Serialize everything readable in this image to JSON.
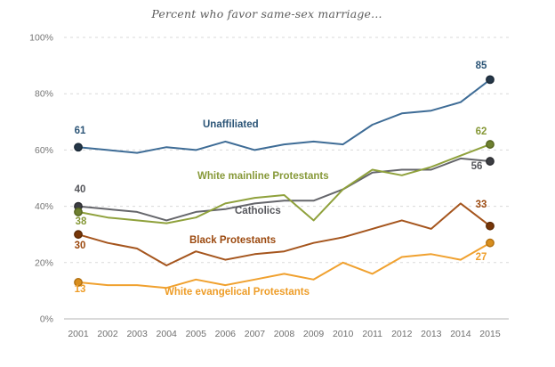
{
  "title": "Percent who favor same-sex marriage...",
  "chart_data": {
    "type": "line",
    "title": "Percent who favor same-sex marriage...",
    "x": [
      2001,
      2002,
      2003,
      2004,
      2005,
      2006,
      2007,
      2008,
      2009,
      2010,
      2011,
      2012,
      2013,
      2014,
      2015
    ],
    "ylim": [
      0,
      100
    ],
    "yticks": [
      0,
      20,
      40,
      60,
      80,
      100
    ],
    "ytick_suffix": "%",
    "grid": "horizontal-dashed",
    "legend_position": "inline-labels",
    "axis_text_color": "#757575",
    "grid_color": "#dadada",
    "axis_line_color": "#b5b5b5",
    "series": [
      {
        "name": "Catholics",
        "color": "#65666B",
        "label_color": "#55565B",
        "marker_fill": "#3C3D42",
        "marker_stroke": "#2B2C30",
        "values": [
          40,
          39,
          38,
          35,
          38,
          39,
          41,
          42,
          42,
          46,
          52,
          53,
          53,
          57,
          56
        ],
        "first_label": "40",
        "last_label": "56",
        "name_pos": [
          264,
          240
        ],
        "first_label_pos": [
          90,
          216
        ],
        "last_label_pos": [
          536,
          190
        ]
      },
      {
        "name": "White mainline Protestants",
        "color": "#8FA13C",
        "label_color": "#879939",
        "marker_fill": "#6E8030",
        "marker_stroke": "#55631F",
        "values": [
          38,
          36,
          35,
          34,
          36,
          41,
          43,
          44,
          35,
          46,
          53,
          51,
          54,
          58,
          62
        ],
        "first_label": "38",
        "last_label": "62",
        "name_pos": [
          222,
          201
        ],
        "first_label_pos": [
          91,
          252
        ],
        "last_label_pos": [
          541,
          151
        ]
      },
      {
        "name": "Unaffiliated",
        "color": "#3E6C96",
        "label_color": "#2C5577",
        "marker_fill": "#253748",
        "marker_stroke": "#1A2836",
        "values": [
          61,
          60,
          59,
          61,
          60,
          63,
          60,
          62,
          63,
          62,
          69,
          73,
          74,
          77,
          85
        ],
        "first_label": "61",
        "last_label": "85",
        "name_pos": [
          228,
          143
        ],
        "first_label_pos": [
          90,
          150
        ],
        "last_label_pos": [
          541,
          77
        ]
      },
      {
        "name": "Black Protestants",
        "color": "#A5551D",
        "label_color": "#9C4A10",
        "marker_fill": "#773608",
        "marker_stroke": "#5C2A06",
        "values": [
          30,
          27,
          25,
          19,
          24,
          21,
          23,
          24,
          27,
          29,
          32,
          35,
          32,
          41,
          33
        ],
        "first_label": "30",
        "last_label": "33",
        "name_pos": [
          213,
          273
        ],
        "first_label_pos": [
          90,
          279
        ],
        "last_label_pos": [
          541,
          233
        ]
      },
      {
        "name": "White evangelical Protestants",
        "color": "#F0A12F",
        "label_color": "#EE9D28",
        "marker_fill": "#D88E1E",
        "marker_stroke": "#B06F10",
        "values": [
          13,
          12,
          12,
          11,
          14,
          12,
          14,
          16,
          14,
          20,
          16,
          22,
          23,
          21,
          27
        ],
        "first_label": "13",
        "last_label": "27",
        "name_pos": [
          185,
          331
        ],
        "first_label_pos": [
          90,
          328
        ],
        "last_label_pos": [
          541,
          292
        ]
      }
    ]
  }
}
